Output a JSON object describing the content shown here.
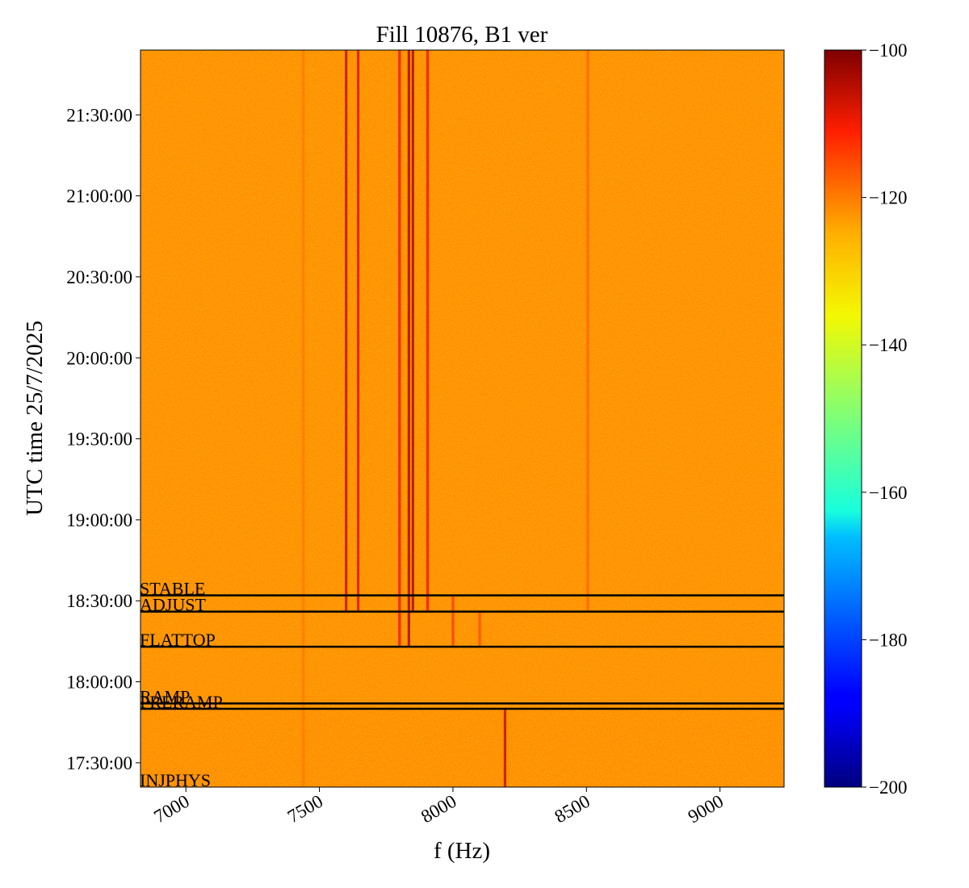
{
  "chart_data": {
    "type": "heatmap",
    "title": "Fill 10876, B1 ver",
    "xlabel": "f (Hz)",
    "ylabel": "UTC time 25/7/2025",
    "xlim": [
      6830,
      9240
    ],
    "x_ticks": [
      7000,
      7500,
      8000,
      8500,
      9000
    ],
    "x_tick_labels": [
      "7000",
      "7500",
      "8000",
      "8500",
      "9000"
    ],
    "ylim_minutes": [
      1041,
      1314
    ],
    "y_ticks_minutes": [
      1050,
      1080,
      1110,
      1140,
      1170,
      1200,
      1230,
      1260,
      1290
    ],
    "y_tick_labels": [
      "17:30:00",
      "18:00:00",
      "18:30:00",
      "19:00:00",
      "19:30:00",
      "20:00:00",
      "20:30:00",
      "21:00:00",
      "21:30:00"
    ],
    "colorbar": {
      "colormap": "jet",
      "range": [
        -200,
        -100
      ],
      "ticks": [
        -100,
        -120,
        -140,
        -160,
        -180,
        -200
      ],
      "tick_labels": [
        "−100",
        "−120",
        "−140",
        "−160",
        "−180",
        "−200"
      ]
    },
    "background_level": -122,
    "phase_markers": [
      {
        "label": "INJPHYS",
        "time_minutes": 1041
      },
      {
        "label": "PRERAMP",
        "time_minutes": 1070
      },
      {
        "label": "RAMP",
        "time_minutes": 1072
      },
      {
        "label": "FLATTOP",
        "time_minutes": 1093
      },
      {
        "label": "ADJUST",
        "time_minutes": 1106
      },
      {
        "label": "STABLE",
        "time_minutes": 1112
      }
    ],
    "spectral_lines": [
      {
        "freq": 7440,
        "from": 1041,
        "to": 1314,
        "level": -120
      },
      {
        "freq": 7600,
        "from": 1106,
        "to": 1314,
        "level": -106
      },
      {
        "freq": 7645,
        "from": 1106,
        "to": 1314,
        "level": -108
      },
      {
        "freq": 7800,
        "from": 1093,
        "to": 1314,
        "level": -110
      },
      {
        "freq": 7835,
        "from": 1093,
        "to": 1314,
        "level": -104
      },
      {
        "freq": 7850,
        "from": 1106,
        "to": 1314,
        "level": -104
      },
      {
        "freq": 7905,
        "from": 1106,
        "to": 1314,
        "level": -110
      },
      {
        "freq": 8000,
        "from": 1093,
        "to": 1112,
        "level": -114
      },
      {
        "freq": 8100,
        "from": 1093,
        "to": 1106,
        "level": -116
      },
      {
        "freq": 8195,
        "from": 1041,
        "to": 1070,
        "level": -106
      },
      {
        "freq": 8505,
        "from": 1106,
        "to": 1314,
        "level": -118
      }
    ]
  }
}
